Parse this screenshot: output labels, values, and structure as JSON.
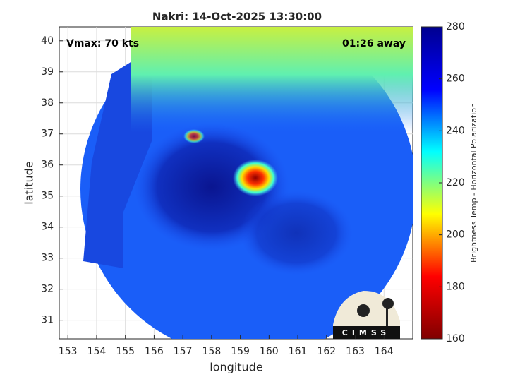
{
  "chart_data": {
    "type": "image",
    "title": "Nakri: 14-Oct-2025 13:30:00",
    "xlabel": "longitude",
    "ylabel": "latitude",
    "xlim": [
      152.7,
      165.0
    ],
    "ylim": [
      30.4,
      40.45
    ],
    "xticks": [
      153,
      154,
      155,
      156,
      157,
      158,
      159,
      160,
      161,
      162,
      163,
      164
    ],
    "yticks": [
      31,
      32,
      33,
      34,
      35,
      36,
      37,
      38,
      39,
      40
    ],
    "grid": true,
    "annotations": [
      "Vmax: 70 kts",
      "01:26 away"
    ],
    "logo_text": "CIMSS",
    "colorbar": {
      "label": "Brightness Temp - Horizontal Polarization",
      "lim": [
        160,
        280
      ],
      "ticks": [
        160,
        180,
        200,
        220,
        240,
        260,
        280
      ],
      "colormap": [
        "#800000",
        "#ff0000",
        "#ffff00",
        "#00ffff",
        "#0000ff",
        "#00008f"
      ]
    }
  }
}
